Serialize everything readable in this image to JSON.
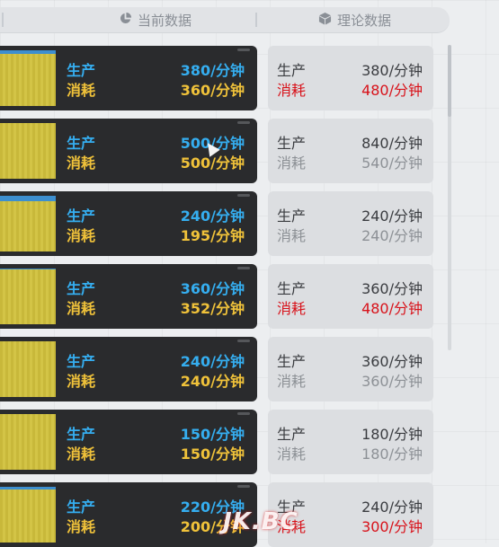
{
  "header": {
    "current_label": "当前数据",
    "current_icon": "pie-chart-icon",
    "theory_label": "理论数据",
    "theory_icon": "cube-icon"
  },
  "colors": {
    "production": "#35aef0",
    "consumption": "#f0c23a",
    "deficit": "#d8121a",
    "bar_fill": "#c8b83a",
    "bar_top": "#3d8fcf"
  },
  "rows": [
    {
      "current": {
        "prod_label": "生产",
        "prod_value": "380/分钟",
        "cons_label": "消耗",
        "cons_value": "360/分钟",
        "bar_top_fraction": 0.06
      },
      "theory": {
        "prod_label": "生产",
        "prod_value": "380/分钟",
        "cons_label": "消耗",
        "cons_value": "480/分钟",
        "cons_state": "red"
      }
    },
    {
      "current": {
        "prod_label": "生产",
        "prod_value": "500/分钟",
        "cons_label": "消耗",
        "cons_value": "500/分钟",
        "bar_top_fraction": 0.0
      },
      "theory": {
        "prod_label": "生产",
        "prod_value": "840/分钟",
        "cons_label": "消耗",
        "cons_value": "540/分钟",
        "cons_state": "dim"
      }
    },
    {
      "current": {
        "prod_label": "生产",
        "prod_value": "240/分钟",
        "cons_label": "消耗",
        "cons_value": "195/分钟",
        "bar_top_fraction": 0.1
      },
      "theory": {
        "prod_label": "生产",
        "prod_value": "240/分钟",
        "cons_label": "消耗",
        "cons_value": "240/分钟",
        "cons_state": "dim"
      }
    },
    {
      "current": {
        "prod_label": "生产",
        "prod_value": "360/分钟",
        "cons_label": "消耗",
        "cons_value": "352/分钟",
        "bar_top_fraction": 0.02
      },
      "theory": {
        "prod_label": "生产",
        "prod_value": "360/分钟",
        "cons_label": "消耗",
        "cons_value": "480/分钟",
        "cons_state": "red"
      }
    },
    {
      "current": {
        "prod_label": "生产",
        "prod_value": "240/分钟",
        "cons_label": "消耗",
        "cons_value": "240/分钟",
        "bar_top_fraction": 0.0
      },
      "theory": {
        "prod_label": "生产",
        "prod_value": "360/分钟",
        "cons_label": "消耗",
        "cons_value": "360/分钟",
        "cons_state": "dim"
      }
    },
    {
      "current": {
        "prod_label": "生产",
        "prod_value": "150/分钟",
        "cons_label": "消耗",
        "cons_value": "150/分钟",
        "bar_top_fraction": 0.0
      },
      "theory": {
        "prod_label": "生产",
        "prod_value": "180/分钟",
        "cons_label": "消耗",
        "cons_value": "180/分钟",
        "cons_state": "dim"
      }
    },
    {
      "current": {
        "prod_label": "生产",
        "prod_value": "220/分钟",
        "cons_label": "消耗",
        "cons_value": "200/分钟",
        "bar_top_fraction": 0.05
      },
      "theory": {
        "prod_label": "生产",
        "prod_value": "240/分钟",
        "cons_label": "消耗",
        "cons_value": "300/分钟",
        "cons_state": "red"
      }
    }
  ],
  "watermark": "JK.BC"
}
